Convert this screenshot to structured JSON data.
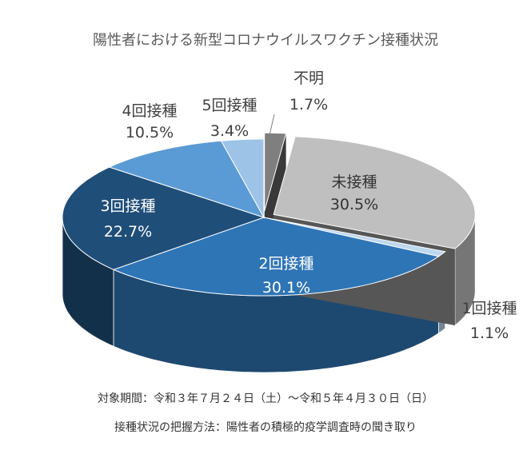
{
  "chart_data": {
    "type": "pie",
    "title": "陽性者における新型コロナウイルスワクチン接種状況",
    "slices": [
      {
        "label": "不明",
        "pct": "1.7%",
        "value": 1.7,
        "color": "#7f7f7f"
      },
      {
        "label": "未接種",
        "pct": "30.5%",
        "value": 30.5,
        "color": "#bfbfbf"
      },
      {
        "label": "1回接種",
        "pct": "1.1%",
        "value": 1.1,
        "color": "#bdd7ee"
      },
      {
        "label": "2回接種",
        "pct": "30.1%",
        "value": 30.1,
        "color": "#2e75b6"
      },
      {
        "label": "3回接種",
        "pct": "22.7%",
        "value": 22.7,
        "color": "#1f4e79"
      },
      {
        "label": "4回接種",
        "pct": "10.5%",
        "value": 10.5,
        "color": "#5b9bd5"
      },
      {
        "label": "5回接種",
        "pct": "3.4%",
        "value": 3.4,
        "color": "#9dc3e6"
      }
    ],
    "exploded": [
      "不明",
      "未接種"
    ]
  },
  "notes": {
    "period": "対象期間：令和３年７月２４日（土）～令和５年４月３０日（日）",
    "method": "接種状況の把握方法：陽性者の積極的疫学調査時の聞き取り"
  }
}
